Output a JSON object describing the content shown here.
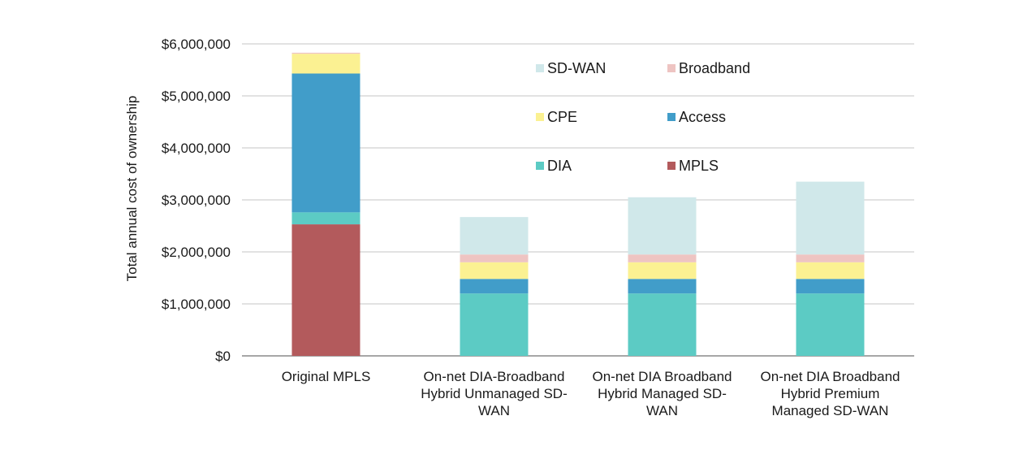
{
  "chart_data": {
    "type": "bar",
    "stacked": true,
    "title": "",
    "xlabel": "",
    "ylabel": "Total annual cost of ownership",
    "ylim": [
      0,
      6000000
    ],
    "yticks": [
      0,
      1000000,
      2000000,
      3000000,
      4000000,
      5000000,
      6000000
    ],
    "ytick_labels": [
      "$0",
      "$1,000,000",
      "$2,000,000",
      "$3,000,000",
      "$4,000,000",
      "$5,000,000",
      "$6,000,000"
    ],
    "grid": "horizontal",
    "legend_placement": "top-center",
    "categories": [
      [
        "Original MPLS"
      ],
      [
        "On-net DIA-Broadband",
        "Hybrid Unmanaged SD-",
        "WAN"
      ],
      [
        "On-net DIA Broadband",
        "Hybrid Managed SD-",
        "WAN"
      ],
      [
        "On-net DIA Broadband",
        "Hybrid Premium",
        "Managed SD-WAN"
      ]
    ],
    "series": [
      {
        "name": "MPLS",
        "color": "#b35a5c",
        "values": [
          2530000,
          0,
          0,
          0
        ]
      },
      {
        "name": "DIA",
        "color": "#5ccbc4",
        "values": [
          230000,
          1200000,
          1200000,
          1200000
        ]
      },
      {
        "name": "Access",
        "color": "#419dc9",
        "values": [
          2670000,
          280000,
          280000,
          280000
        ]
      },
      {
        "name": "CPE",
        "color": "#fbf192",
        "values": [
          380000,
          320000,
          320000,
          320000
        ]
      },
      {
        "name": "Broadband",
        "color": "#eec4c2",
        "values": [
          20000,
          150000,
          150000,
          150000
        ]
      },
      {
        "name": "SD-WAN",
        "color": "#d0e8ea",
        "values": [
          0,
          720000,
          1100000,
          1400000
        ]
      }
    ],
    "legend_order": [
      "SD-WAN",
      "Broadband",
      "CPE",
      "Access",
      "DIA",
      "MPLS"
    ]
  }
}
